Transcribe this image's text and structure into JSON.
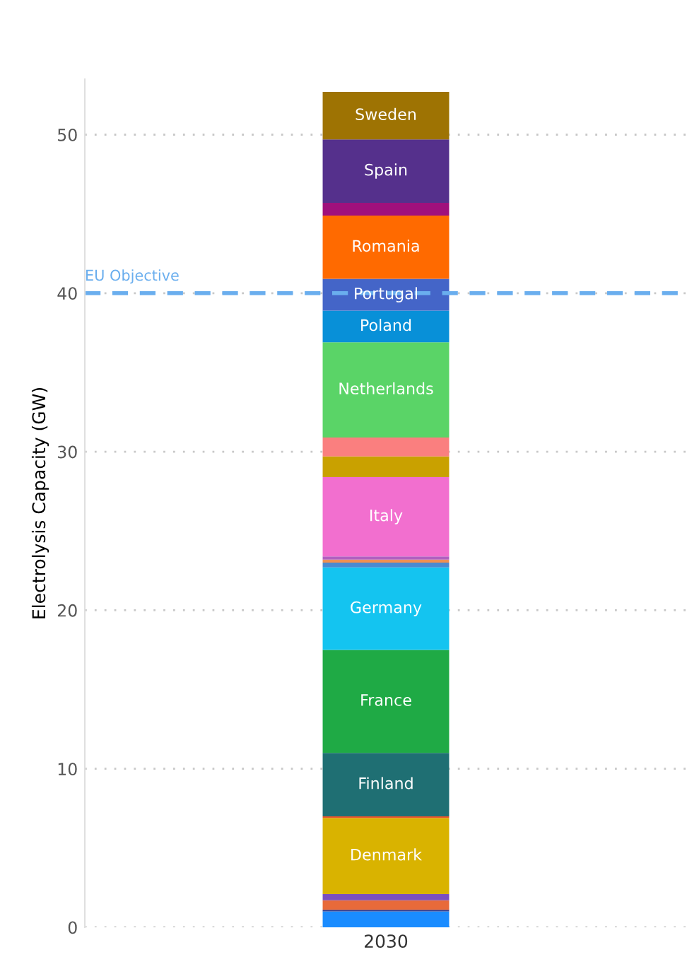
{
  "chart_data": {
    "type": "bar",
    "stacked": true,
    "categories": [
      "2030"
    ],
    "ylabel": "Electrolysis Capacity (GW)",
    "ylim": [
      0,
      53.5
    ],
    "yticks": [
      0,
      10,
      20,
      30,
      40,
      50
    ],
    "grid": "y",
    "legend": false,
    "ref_lines": [
      {
        "axis": "y",
        "value": 40,
        "label": "EU Objective",
        "color": "#6aaeee",
        "line_style": "dashed"
      }
    ],
    "series": [
      {
        "color": "#1a8cff",
        "values": [
          1.0
        ]
      },
      {
        "color": "#2b3a8f",
        "values": [
          0.1
        ]
      },
      {
        "color": "#e86a3a",
        "values": [
          0.6
        ]
      },
      {
        "color": "#7a4fc0",
        "values": [
          0.4
        ]
      },
      {
        "name": "Denmark",
        "color": "#d9b300",
        "values": [
          4.8
        ]
      },
      {
        "color": "#e8562b",
        "values": [
          0.1
        ]
      },
      {
        "name": "Finland",
        "color": "#1f6f73",
        "values": [
          4.0
        ]
      },
      {
        "name": "France",
        "color": "#1faa45",
        "values": [
          6.5
        ]
      },
      {
        "name": "Germany",
        "color": "#14c4f0",
        "values": [
          5.2
        ]
      },
      {
        "color": "#4a8ad0",
        "values": [
          0.3
        ]
      },
      {
        "color": "#f09050",
        "values": [
          0.2
        ]
      },
      {
        "color": "#b060c0",
        "values": [
          0.2
        ]
      },
      {
        "name": "Italy",
        "color": "#f26fcf",
        "values": [
          5.0
        ]
      },
      {
        "color": "#c9a100",
        "values": [
          1.3
        ]
      },
      {
        "color": "#fa7f7f",
        "values": [
          1.2
        ]
      },
      {
        "name": "Netherlands",
        "color": "#5ad467",
        "values": [
          6.0
        ]
      },
      {
        "name": "Poland",
        "color": "#0890d8",
        "values": [
          2.0
        ]
      },
      {
        "name": "Portugal",
        "color": "#4465c8",
        "values": [
          2.0
        ]
      },
      {
        "name": "Romania",
        "color": "#ff6a00",
        "values": [
          4.0
        ]
      },
      {
        "name": null,
        "color": "#a0107c",
        "values": [
          0.8
        ]
      },
      {
        "name": "Spain",
        "color": "#55308c",
        "values": [
          4.0
        ]
      },
      {
        "name": "Sweden",
        "color": "#9e7303",
        "values": [
          3.0
        ]
      }
    ]
  }
}
